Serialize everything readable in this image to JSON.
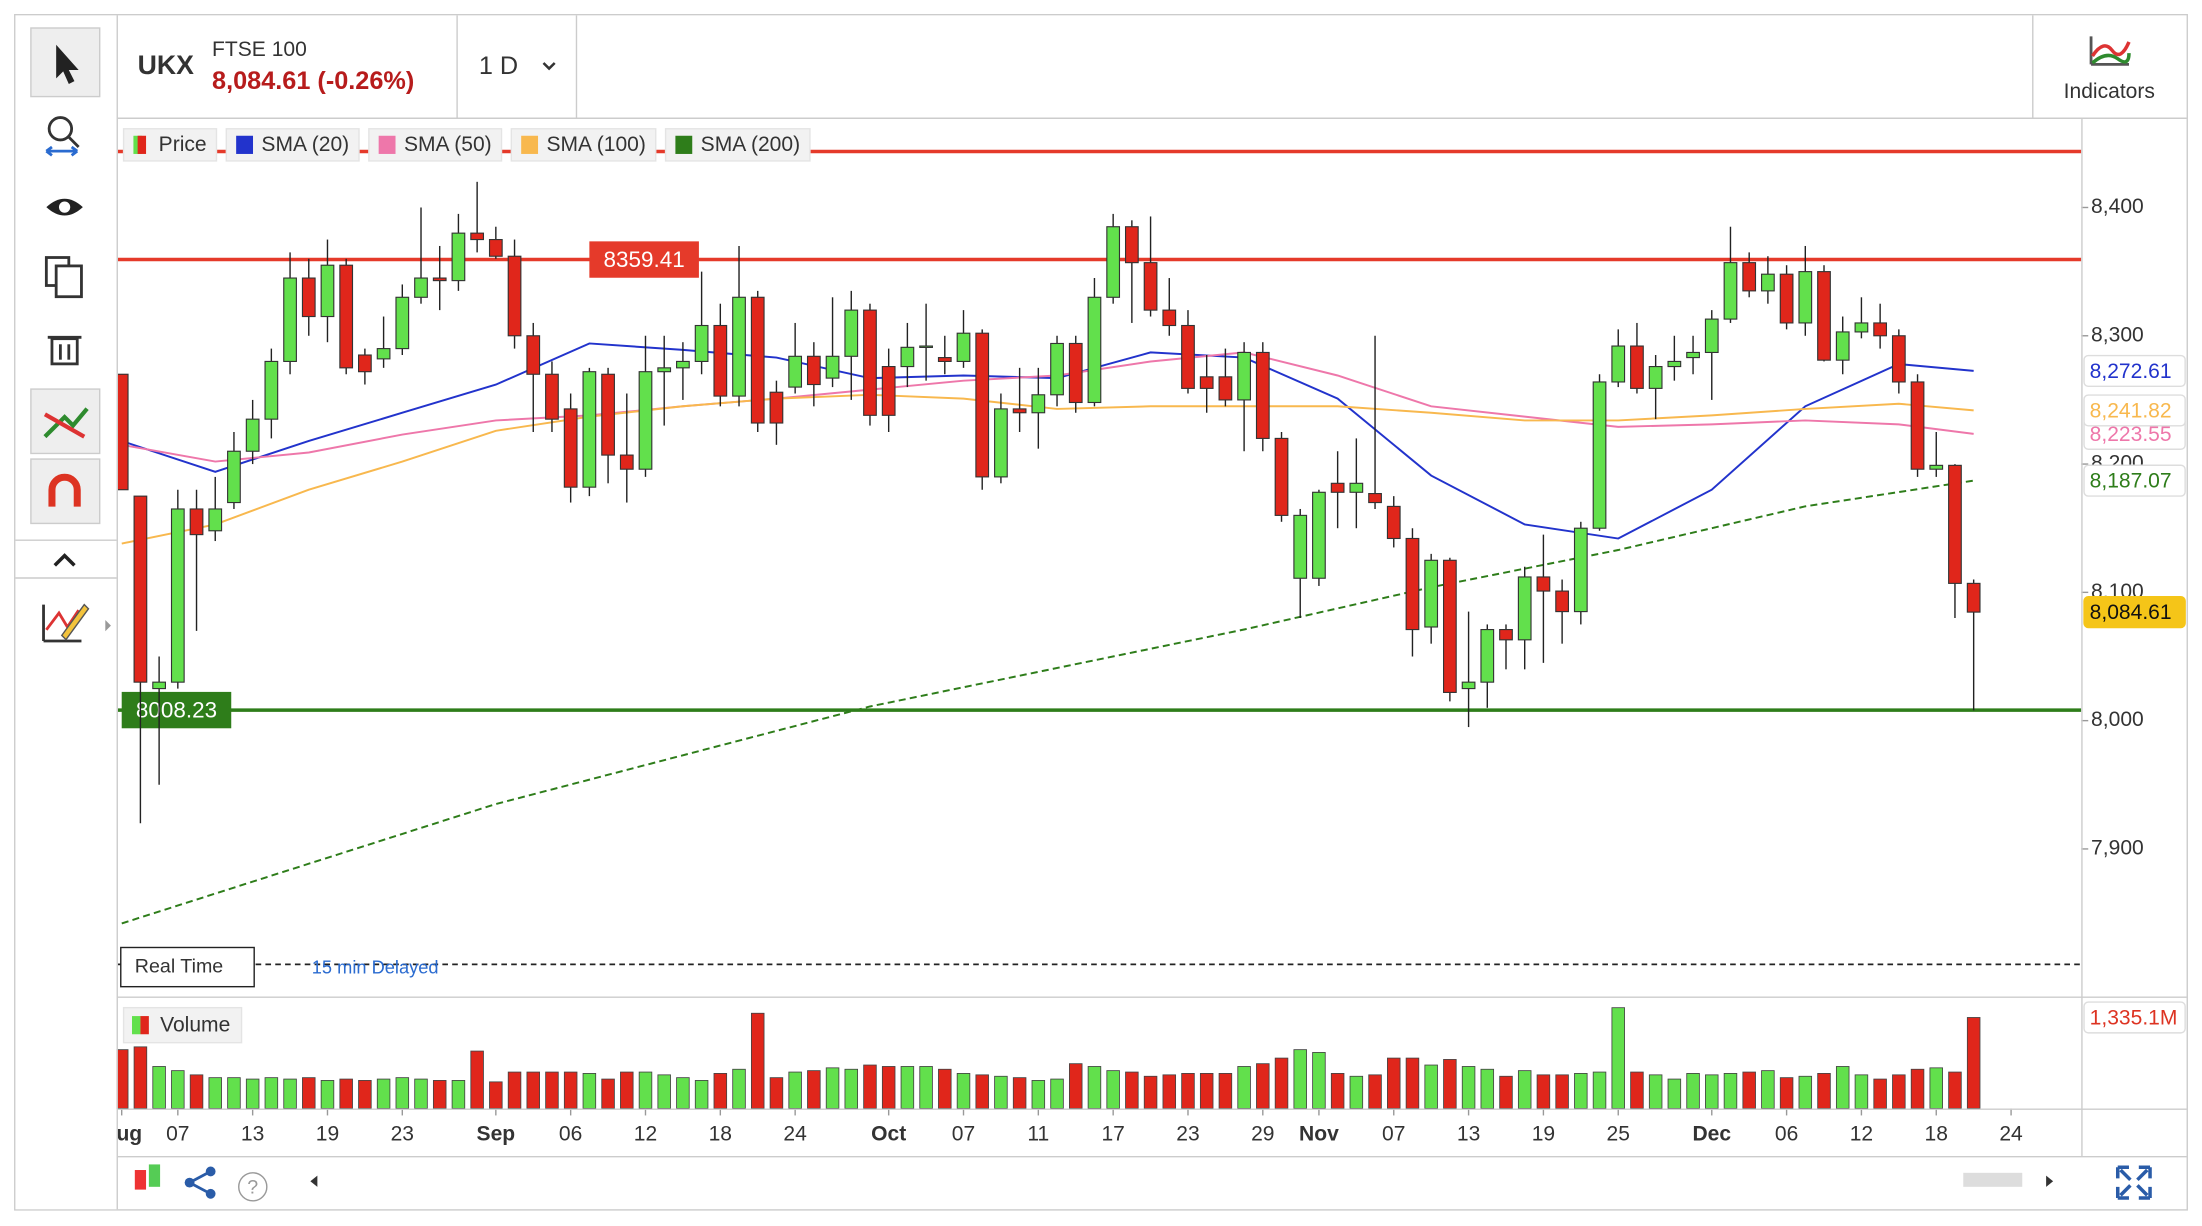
{
  "header": {
    "symbol": "UKX",
    "name": "FTSE 100",
    "quote": "8,084.61 (-0.26%)",
    "interval": "1 D",
    "indicators": "Indicators",
    "feed": "Real Time",
    "delay": "15 min Delayed"
  },
  "chart_data": [
    {
      "type": "candlestick",
      "name": "Price",
      "up_color": "#62e04c",
      "down_color": "#e0261b",
      "xlim": [
        -0.2,
        104.75
      ],
      "ylim": [
        7785,
        8469
      ],
      "yticks": [
        {
          "value": 7900,
          "label": "7,900"
        },
        {
          "value": 8000,
          "label": "8,000"
        },
        {
          "value": 8100,
          "label": "8,100"
        },
        {
          "value": 8200,
          "label": "8,200"
        },
        {
          "value": 8300,
          "label": "8,300"
        },
        {
          "value": 8400,
          "label": "8,400"
        }
      ],
      "open": [
        8270,
        8175,
        8025,
        8030,
        8165,
        8148,
        8170,
        8210,
        8235,
        8280,
        8345,
        8315,
        8355,
        8285,
        8282,
        8290,
        8330,
        8345,
        8343,
        8380,
        8375,
        8362,
        8300,
        8270,
        8243,
        8182,
        8270,
        8207,
        8196,
        8272,
        8275,
        8280,
        8308,
        8253,
        8330,
        8256,
        8260,
        8284,
        8267,
        8284,
        8320,
        8276,
        8276,
        8291,
        8283,
        8280,
        8302,
        8190,
        8243,
        8240,
        8254,
        8294,
        8248,
        8330,
        8385,
        8357,
        8320,
        8308,
        8268,
        8268,
        8250,
        8287,
        8220,
        8111,
        8111,
        8185,
        8178,
        8177,
        8167,
        8142,
        8073,
        8125,
        8025,
        8030,
        8071,
        8063,
        8112,
        8101,
        8085,
        8150,
        8264,
        8292,
        8259,
        8276,
        8283,
        8287,
        8313,
        8357,
        8335,
        8348,
        8310,
        8350,
        8281,
        8303,
        8310,
        8300,
        8264,
        8196,
        8199,
        8107
      ],
      "high": [
        8270,
        8175,
        8050,
        8180,
        8180,
        8190,
        8225,
        8250,
        8290,
        8365,
        8360,
        8375,
        8360,
        8290,
        8315,
        8340,
        8400,
        8370,
        8395,
        8420,
        8385,
        8375,
        8310,
        8280,
        8255,
        8275,
        8275,
        8255,
        8300,
        8300,
        8295,
        8350,
        8325,
        8370,
        8335,
        8265,
        8310,
        8295,
        8330,
        8335,
        8325,
        8290,
        8310,
        8325,
        8300,
        8320,
        8305,
        8255,
        8275,
        8275,
        8300,
        8300,
        8345,
        8395,
        8390,
        8393,
        8345,
        8320,
        8285,
        8290,
        8295,
        8295,
        8225,
        8165,
        8180,
        8210,
        8220,
        8300,
        8175,
        8150,
        8130,
        8127,
        8085,
        8075,
        8075,
        8120,
        8145,
        8110,
        8155,
        8270,
        8305,
        8310,
        8285,
        8300,
        8300,
        8320,
        8385,
        8365,
        8362,
        8355,
        8370,
        8355,
        8315,
        8330,
        8325,
        8305,
        8270,
        8225,
        8200,
        8110
      ],
      "low": [
        8180,
        7920,
        7950,
        8025,
        8070,
        8140,
        8165,
        8200,
        8220,
        8270,
        8300,
        8295,
        8270,
        8262,
        8275,
        8285,
        8325,
        8320,
        8335,
        8365,
        8360,
        8290,
        8225,
        8225,
        8170,
        8175,
        8185,
        8170,
        8190,
        8230,
        8250,
        8270,
        8245,
        8245,
        8225,
        8215,
        8255,
        8245,
        8260,
        8250,
        8230,
        8225,
        8260,
        8265,
        8270,
        8275,
        8180,
        8185,
        8225,
        8212,
        8245,
        8240,
        8245,
        8325,
        8310,
        8315,
        8300,
        8255,
        8240,
        8245,
        8210,
        8210,
        8155,
        8080,
        8105,
        8150,
        8150,
        8165,
        8135,
        8050,
        8060,
        8015,
        7995,
        8010,
        8040,
        8040,
        8045,
        8060,
        8075,
        8148,
        8260,
        8255,
        8235,
        8265,
        8270,
        8250,
        8310,
        8330,
        8325,
        8305,
        8300,
        8280,
        8270,
        8298,
        8290,
        8255,
        8190,
        8190,
        8080,
        8008
      ],
      "close": [
        8180,
        8030,
        8030,
        8165,
        8145,
        8165,
        8210,
        8235,
        8280,
        8345,
        8315,
        8355,
        8275,
        8272,
        8290,
        8330,
        8345,
        8343,
        8380,
        8375,
        8362,
        8300,
        8270,
        8235,
        8182,
        8272,
        8207,
        8196,
        8272,
        8275,
        8280,
        8308,
        8253,
        8330,
        8232,
        8232,
        8284,
        8262,
        8284,
        8320,
        8238,
        8238,
        8291,
        8292,
        8280,
        8302,
        8190,
        8243,
        8240,
        8254,
        8294,
        8248,
        8330,
        8385,
        8357,
        8320,
        8308,
        8259,
        8259,
        8250,
        8287,
        8220,
        8160,
        8160,
        8178,
        8178,
        8185,
        8170,
        8142,
        8071,
        8125,
        8022,
        8030,
        8071,
        8063,
        8112,
        8101,
        8085,
        8150,
        8264,
        8292,
        8259,
        8276,
        8280,
        8287,
        8313,
        8357,
        8335,
        8348,
        8310,
        8350,
        8281,
        8303,
        8310,
        8300,
        8264,
        8196,
        8199,
        8107,
        8084.61
      ],
      "last_label": "8,084.61",
      "last_color": "#f5c518",
      "series": [
        {
          "name": "SMA (20)",
          "color": "#2233cc",
          "x": [
            0,
            5,
            10,
            15,
            20,
            25,
            30,
            35,
            40,
            45,
            50,
            55,
            60,
            65,
            70,
            75,
            80,
            85,
            90,
            95,
            99
          ],
          "values": [
            8218,
            8194,
            8218,
            8240,
            8262,
            8294,
            8289,
            8283,
            8267,
            8269,
            8267,
            8287,
            8283,
            8251,
            8191,
            8153,
            8142,
            8180,
            8245,
            8278,
            8272.61
          ],
          "last_label": "8,272.61"
        },
        {
          "name": "SMA (50)",
          "color": "#ee77aa",
          "x": [
            0,
            5,
            10,
            15,
            20,
            25,
            30,
            35,
            40,
            45,
            50,
            55,
            60,
            65,
            70,
            75,
            80,
            85,
            90,
            95,
            99
          ],
          "values": [
            8215,
            8202,
            8209,
            8223,
            8234,
            8238,
            8245,
            8251,
            8258,
            8265,
            8269,
            8280,
            8287,
            8269,
            8245,
            8237,
            8229,
            8231,
            8234,
            8231,
            8223.55
          ],
          "last_label": "8,223.55"
        },
        {
          "name": "SMA (100)",
          "color": "#f8b84e",
          "x": [
            0,
            5,
            10,
            15,
            20,
            25,
            30,
            35,
            40,
            45,
            50,
            55,
            60,
            65,
            70,
            75,
            80,
            85,
            90,
            95,
            99
          ],
          "values": [
            8138,
            8153,
            8180,
            8202,
            8226,
            8237,
            8245,
            8251,
            8254,
            8251,
            8243,
            8245,
            8245,
            8245,
            8240,
            8234,
            8234,
            8238,
            8243,
            8247,
            8241.82
          ],
          "last_label": "8,241.82"
        },
        {
          "name": "SMA (200)",
          "color": "#2e7d1a",
          "dashed": true,
          "x": [
            0,
            20,
            40,
            60,
            70,
            80,
            90,
            99
          ],
          "values": [
            7842,
            7935,
            8011,
            8071,
            8104,
            8133,
            8167,
            8187.07
          ],
          "last_label": "8,187.07"
        }
      ],
      "hlines": [
        {
          "value": 8443.6,
          "color": "#e53a2a"
        },
        {
          "value": 8359.41,
          "color": "#e53a2a",
          "labeled": true,
          "label_at": 25
        },
        {
          "value": 8008.23,
          "color": "#2e7d1a",
          "labeled": true,
          "label_at": 0
        },
        {
          "value": 7810,
          "color": "#222222",
          "dashed": true
        }
      ]
    },
    {
      "type": "bar",
      "name": "Volume",
      "xlim": [
        -0.2,
        104.75
      ],
      "ylim": [
        0,
        1623
      ],
      "values": [
        863,
        904,
        616,
        555,
        493,
        452,
        452,
        431,
        452,
        431,
        452,
        411,
        431,
        411,
        431,
        452,
        431,
        411,
        411,
        842,
        390,
        534,
        534,
        534,
        534,
        514,
        431,
        534,
        534,
        493,
        452,
        411,
        514,
        575,
        1397,
        452,
        534,
        555,
        596,
        575,
        637,
        616,
        616,
        616,
        575,
        514,
        493,
        472,
        452,
        411,
        431,
        657,
        616,
        555,
        534,
        472,
        493,
        514,
        514,
        514,
        616,
        657,
        739,
        863,
        822,
        514,
        472,
        493,
        739,
        739,
        637,
        719,
        616,
        575,
        472,
        555,
        493,
        493,
        514,
        534,
        1479,
        534,
        493,
        431,
        514,
        493,
        514,
        534,
        555,
        452,
        472,
        514,
        616,
        493,
        431,
        493,
        575,
        596,
        534,
        1335.1
      ],
      "last_label": "1,335.1M",
      "xticks": [
        {
          "value": 0,
          "label": "Aug"
        },
        {
          "value": 3,
          "label": "07"
        },
        {
          "value": 7,
          "label": "13"
        },
        {
          "value": 11,
          "label": "19"
        },
        {
          "value": 15,
          "label": "23"
        },
        {
          "value": 20,
          "label": "Sep"
        },
        {
          "value": 24,
          "label": "06"
        },
        {
          "value": 28,
          "label": "12"
        },
        {
          "value": 32,
          "label": "18"
        },
        {
          "value": 36,
          "label": "24"
        },
        {
          "value": 41,
          "label": "Oct"
        },
        {
          "value": 45,
          "label": "07"
        },
        {
          "value": 49,
          "label": "11"
        },
        {
          "value": 53,
          "label": "17"
        },
        {
          "value": 57,
          "label": "23"
        },
        {
          "value": 61,
          "label": "29"
        },
        {
          "value": 64,
          "label": "Nov"
        },
        {
          "value": 68,
          "label": "07"
        },
        {
          "value": 72,
          "label": "13"
        },
        {
          "value": 76,
          "label": "19"
        },
        {
          "value": 80,
          "label": "25"
        },
        {
          "value": 85,
          "label": "Dec"
        },
        {
          "value": 89,
          "label": "06"
        },
        {
          "value": 93,
          "label": "12"
        },
        {
          "value": 97,
          "label": "18"
        },
        {
          "value": 101,
          "label": "24"
        }
      ]
    }
  ]
}
